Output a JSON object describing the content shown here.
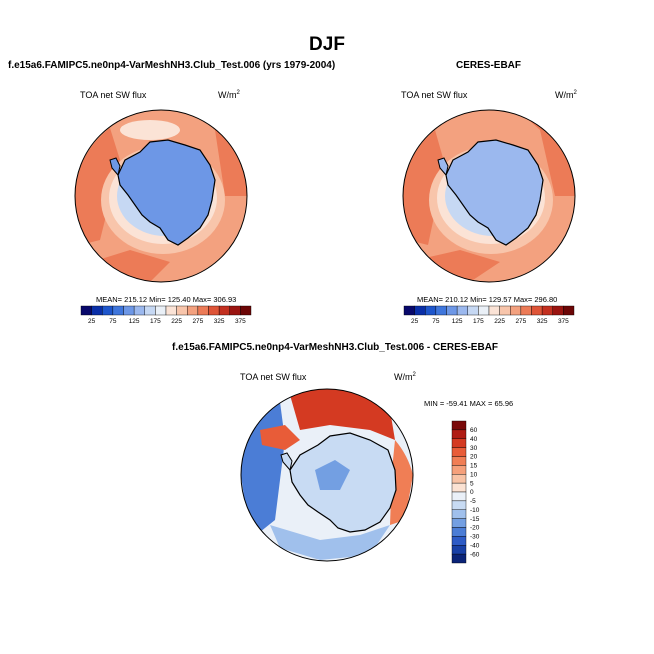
{
  "title": "DJF",
  "panels": [
    {
      "title": "f.e15a6.FAMIPC5.ne0np4-VarMeshNH3.Club_Test.006 (yrs 1979-2004)",
      "field": "TOA net SW flux",
      "units": "W/m",
      "units_sup": "2",
      "stats": "MEAN= 215.12  Min= 125.40  Max= 306.93"
    },
    {
      "title": "CERES-EBAF",
      "field": "TOA net SW flux",
      "units": "W/m",
      "units_sup": "2",
      "stats": "MEAN= 210.12  Min= 129.57  Max= 296.80"
    },
    {
      "title": "f.e15a6.FAMIPC5.ne0np4-VarMeshNH3.Club_Test.006 - CERES-EBAF",
      "field": "TOA net SW flux",
      "units": "W/m",
      "units_sup": "2",
      "stats": "MIN = -59.41  MAX =  65.96"
    }
  ],
  "colorbar_abs": {
    "labels": [
      "25",
      "75",
      "125",
      "175",
      "225",
      "275",
      "325",
      "375"
    ],
    "levels": [
      25,
      50,
      75,
      100,
      125,
      150,
      175,
      200,
      225,
      250,
      275,
      300,
      325,
      350,
      375
    ],
    "colors": [
      "#08086b",
      "#0a2fa8",
      "#1e56cc",
      "#3f76dc",
      "#6d97e6",
      "#9bb8ee",
      "#c6d8f3",
      "#eaf0f7",
      "#fbe3d6",
      "#f8c5ab",
      "#f3a17f",
      "#ec7b57",
      "#de5437",
      "#c33020",
      "#9a1410",
      "#6c0606"
    ]
  },
  "colorbar_diff": {
    "labels": [
      "60",
      "40",
      "30",
      "20",
      "15",
      "10",
      "5",
      "0",
      "-5",
      "-10",
      "-15",
      "-20",
      "-30",
      "-40",
      "-60"
    ],
    "colors": [
      "#7a0a0a",
      "#b01c14",
      "#d43a22",
      "#e85c38",
      "#f07e55",
      "#f5a07b",
      "#f8c3a6",
      "#fbe2d3",
      "#eaf0f8",
      "#c8dbf3",
      "#a0c0ec",
      "#739fe2",
      "#4b7dd6",
      "#2d5bc6",
      "#1840a6",
      "#0b2478"
    ]
  },
  "chart_data": [
    {
      "type": "heatmap",
      "projection": "south-polar stereographic",
      "title": "f.e15a6.FAMIPC5.ne0np4-VarMeshNH3.Club_Test.006 (yrs 1979-2004)",
      "variable": "TOA net SW flux",
      "units": "W/m2",
      "mean": 215.12,
      "min": 125.4,
      "max": 306.93,
      "levels": [
        25,
        50,
        75,
        100,
        125,
        150,
        175,
        200,
        225,
        250,
        275,
        300,
        325,
        350,
        375
      ]
    },
    {
      "type": "heatmap",
      "projection": "south-polar stereographic",
      "title": "CERES-EBAF",
      "variable": "TOA net SW flux",
      "units": "W/m2",
      "mean": 210.12,
      "min": 129.57,
      "max": 296.8,
      "levels": [
        25,
        50,
        75,
        100,
        125,
        150,
        175,
        200,
        225,
        250,
        275,
        300,
        325,
        350,
        375
      ]
    },
    {
      "type": "heatmap",
      "projection": "south-polar stereographic",
      "title": "f.e15a6.FAMIPC5.ne0np4-VarMeshNH3.Club_Test.006 - CERES-EBAF",
      "variable": "TOA net SW flux difference",
      "units": "W/m2",
      "min": -59.41,
      "max": 65.96,
      "levels": [
        -60,
        -40,
        -30,
        -20,
        -15,
        -10,
        -5,
        0,
        5,
        10,
        15,
        20,
        30,
        40,
        60
      ]
    }
  ]
}
